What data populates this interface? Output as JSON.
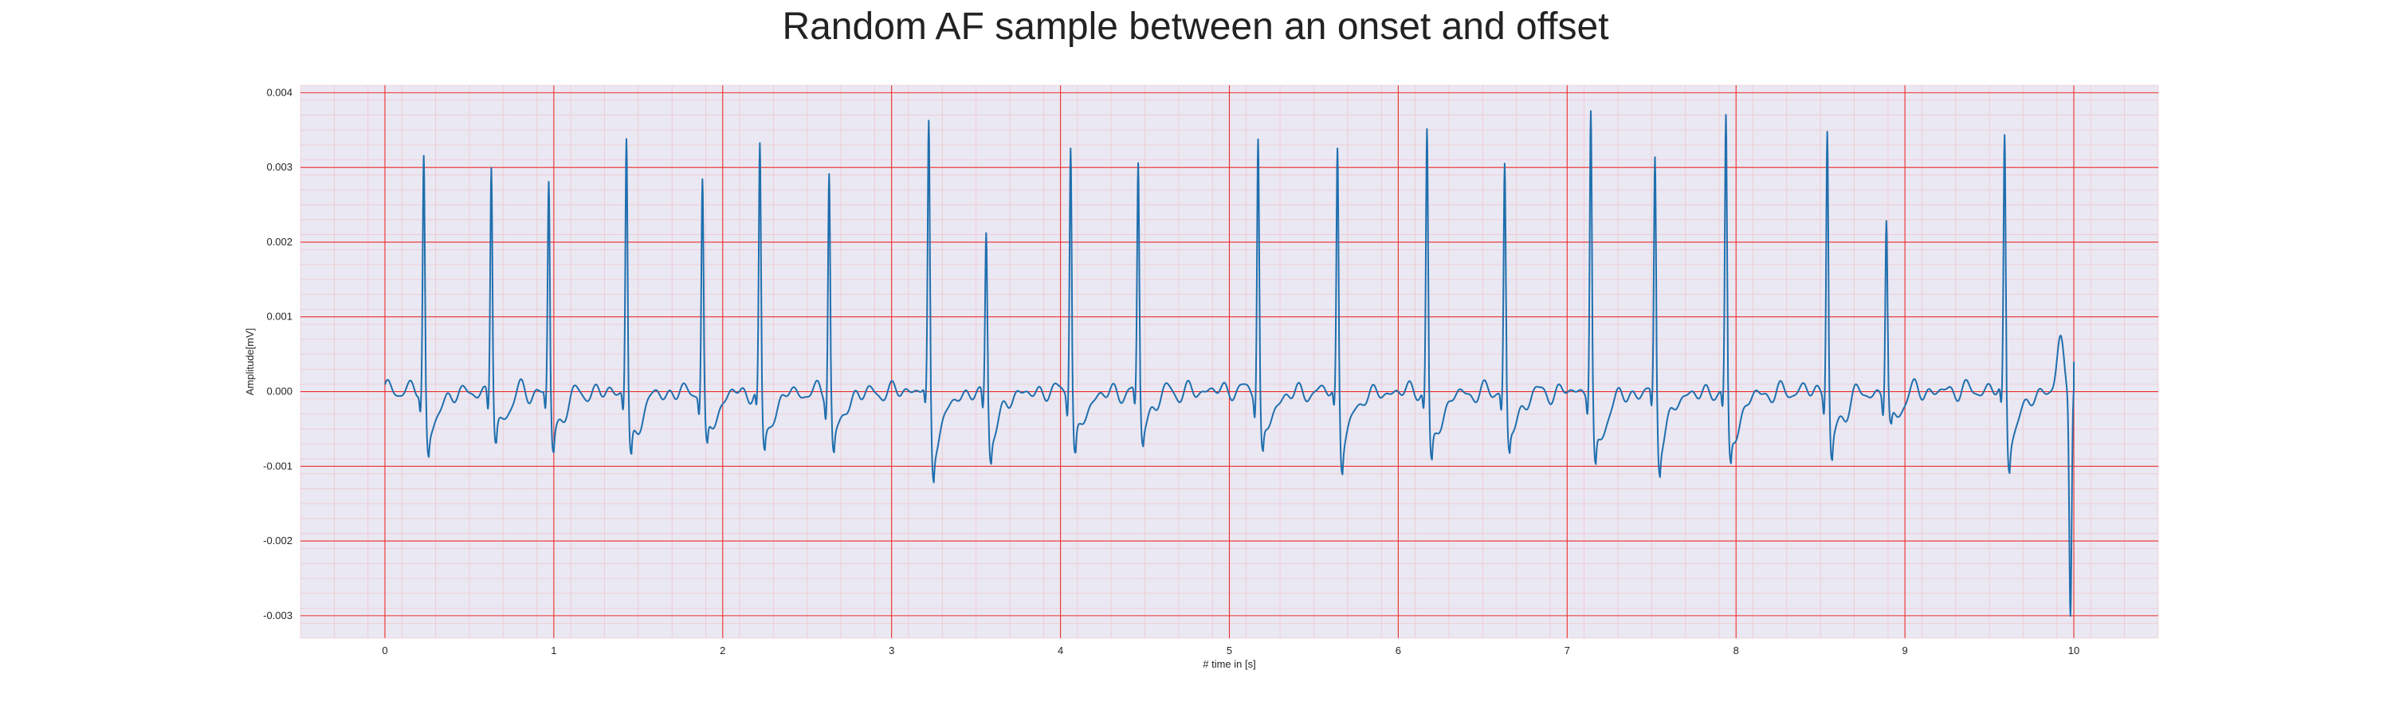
{
  "chart_data": {
    "type": "line",
    "title": "Random AF sample between an onset and offset",
    "xlabel": "# time in [s]",
    "ylabel": "Amplitude[mV]",
    "xlim": [
      -0.5,
      10.5
    ],
    "ylim": [
      -0.0033,
      0.0041
    ],
    "xticks": [
      0,
      1,
      2,
      3,
      4,
      5,
      6,
      7,
      8,
      9,
      10
    ],
    "xtick_labels": [
      "0",
      "1",
      "2",
      "3",
      "4",
      "5",
      "6",
      "7",
      "8",
      "9",
      "10"
    ],
    "yticks": [
      -0.003,
      -0.002,
      -0.001,
      0.0,
      0.001,
      0.002,
      0.003,
      0.004
    ],
    "ytick_labels": [
      "-0.003",
      "-0.002",
      "-0.001",
      "0.000",
      "0.001",
      "0.002",
      "0.003",
      "0.004"
    ],
    "grid": true,
    "colors": {
      "series": "#1f6fae",
      "plot_background": "#eae8f2",
      "major_grid": "#ee2c2c",
      "minor_grid": "#f4b3b8"
    },
    "beats": [
      {
        "t": 0.23,
        "peak": 0.0031,
        "trough": -0.00085
      },
      {
        "t": 0.63,
        "peak": 0.00305,
        "trough": -0.00075
      },
      {
        "t": 0.97,
        "peak": 0.0028,
        "trough": -0.0008
      },
      {
        "t": 1.43,
        "peak": 0.00335,
        "trough": -0.00095
      },
      {
        "t": 1.88,
        "peak": 0.0028,
        "trough": -0.00082
      },
      {
        "t": 2.22,
        "peak": 0.00322,
        "trough": -0.0008
      },
      {
        "t": 2.63,
        "peak": 0.00295,
        "trough": -0.00085
      },
      {
        "t": 3.22,
        "peak": 0.0035,
        "trough": -0.0011
      },
      {
        "t": 3.56,
        "peak": 0.00215,
        "trough": -0.00088
      },
      {
        "t": 4.06,
        "peak": 0.00335,
        "trough": -0.0009
      },
      {
        "t": 4.46,
        "peak": 0.003,
        "trough": -0.00065
      },
      {
        "t": 5.17,
        "peak": 0.0034,
        "trough": -0.00088
      },
      {
        "t": 5.64,
        "peak": 0.0032,
        "trough": -0.001
      },
      {
        "t": 6.17,
        "peak": 0.00345,
        "trough": -0.001
      },
      {
        "t": 6.63,
        "peak": 0.003,
        "trough": -0.00085
      },
      {
        "t": 7.14,
        "peak": 0.00372,
        "trough": -0.0011
      },
      {
        "t": 7.52,
        "peak": 0.0031,
        "trough": -0.001
      },
      {
        "t": 7.94,
        "peak": 0.0036,
        "trough": -0.001
      },
      {
        "t": 8.54,
        "peak": 0.0035,
        "trough": -0.00095
      },
      {
        "t": 8.89,
        "peak": 0.0023,
        "trough": -0.00055
      },
      {
        "t": 9.59,
        "peak": 0.00338,
        "trough": -0.001
      }
    ],
    "end_segment": {
      "spike_t": 9.92,
      "spike_peak": 0.00088,
      "dip_t": 9.98,
      "dip_value": -0.00295,
      "end_t": 10.0,
      "end_value": 0.0004
    }
  }
}
